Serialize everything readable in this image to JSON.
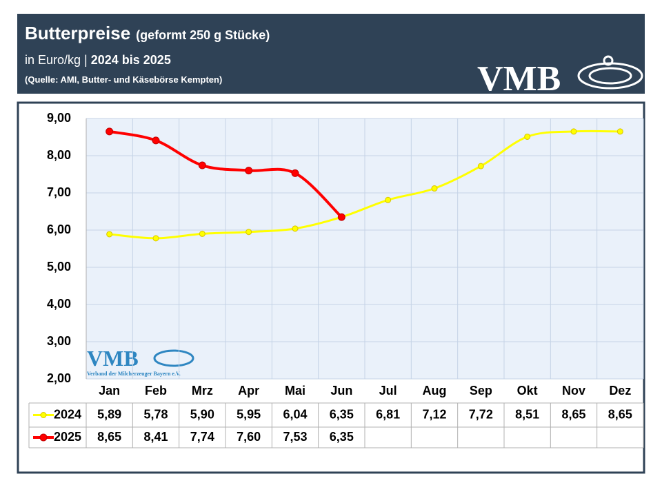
{
  "header": {
    "title": "Butterpreise",
    "title_note": "(geformt 250 g Stücke)",
    "subtitle": "in Euro/kg |",
    "subtitle_bold": "2024 bis 2025",
    "source": "(Quelle: AMI, Butter- und Käsebörse Kempten)",
    "logo": "VMB"
  },
  "watermark": {
    "logo": "VMB",
    "text": "Verband der Milcherzeuger Bayern e.V."
  },
  "chart_data": {
    "type": "line",
    "categories": [
      "Jan",
      "Feb",
      "Mrz",
      "Apr",
      "Mai",
      "Jun",
      "Jul",
      "Aug",
      "Sep",
      "Okt",
      "Nov",
      "Dez"
    ],
    "series": [
      {
        "name": "2024",
        "color": "#ffff00",
        "marker_edge": "#d8c400",
        "values": [
          5.89,
          5.78,
          5.9,
          5.95,
          6.04,
          6.35,
          6.81,
          7.12,
          7.72,
          8.51,
          8.65,
          8.65
        ],
        "value_labels": [
          "5,89",
          "5,78",
          "5,90",
          "5,95",
          "6,04",
          "6,35",
          "6,81",
          "7,12",
          "7,72",
          "8,51",
          "8,65",
          "8,65"
        ]
      },
      {
        "name": "2025",
        "color": "#ff0000",
        "marker_edge": "#c00000",
        "values": [
          8.65,
          8.41,
          7.74,
          7.6,
          7.53,
          6.35,
          null,
          null,
          null,
          null,
          null,
          null
        ],
        "value_labels": [
          "8,65",
          "8,41",
          "7,74",
          "7,60",
          "7,53",
          "6,35",
          null,
          null,
          null,
          null,
          null,
          null
        ]
      }
    ],
    "ylim": [
      2,
      9
    ],
    "yticks": [
      {
        "value": 2,
        "label": "2,00"
      },
      {
        "value": 3,
        "label": "3,00"
      },
      {
        "value": 4,
        "label": "4,00"
      },
      {
        "value": 5,
        "label": "5,00"
      },
      {
        "value": 6,
        "label": "6,00"
      },
      {
        "value": 7,
        "label": "7,00"
      },
      {
        "value": 8,
        "label": "8,00"
      },
      {
        "value": 9,
        "label": "9,00"
      }
    ],
    "grid": true,
    "smooth": true
  }
}
